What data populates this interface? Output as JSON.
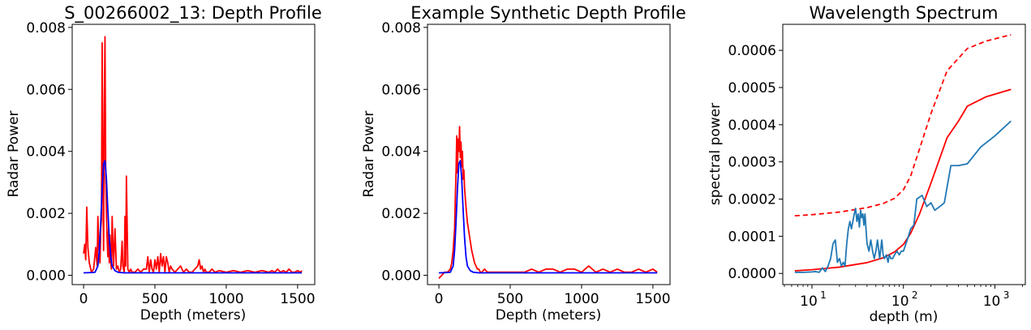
{
  "colors": {
    "red": "#ff0000",
    "blue": "#0000ff",
    "steelblue": "#1f77b4",
    "axes": "#000000",
    "background": "#ffffff"
  },
  "chart_data": [
    {
      "type": "line",
      "title": "S_00266002_13: Depth Profile",
      "xlabel": "Depth (meters)",
      "ylabel": "Radar Power",
      "xlim": [
        -80,
        1620
      ],
      "ylim": [
        -0.0003,
        0.0081
      ],
      "xticks": [
        0,
        500,
        1000,
        1500
      ],
      "xtick_labels": [
        "0",
        "500",
        "1000",
        "1500"
      ],
      "yticks": [
        0.0,
        0.002,
        0.004,
        0.006,
        0.008
      ],
      "ytick_labels": [
        "0.000",
        "0.002",
        "0.004",
        "0.006",
        "0.008"
      ],
      "grid": false,
      "series": [
        {
          "color": "red",
          "style": "solid",
          "x": [
            0,
            8,
            15,
            22,
            30,
            40,
            55,
            70,
            85,
            95,
            100,
            108,
            115,
            120,
            125,
            130,
            135,
            140,
            145,
            150,
            155,
            160,
            165,
            170,
            175,
            180,
            185,
            190,
            195,
            200,
            210,
            220,
            230,
            240,
            250,
            260,
            270,
            275,
            280,
            285,
            290,
            295,
            300,
            310,
            320,
            330,
            340,
            360,
            380,
            400,
            420,
            440,
            450,
            460,
            470,
            480,
            490,
            500,
            510,
            520,
            530,
            540,
            550,
            560,
            570,
            580,
            590,
            600,
            610,
            620,
            640,
            660,
            680,
            700,
            720,
            740,
            760,
            780,
            800,
            810,
            820,
            830,
            840,
            850,
            860,
            880,
            900,
            920,
            950,
            1000,
            1050,
            1100,
            1150,
            1200,
            1250,
            1300,
            1320,
            1340,
            1360,
            1380,
            1400,
            1420,
            1440,
            1460,
            1480,
            1500,
            1520,
            1530
          ],
          "y": [
            0.0007,
            0.001,
            0.0005,
            0.0022,
            0.0009,
            0.0004,
            0.0001,
            0.0002,
            0.0009,
            0.0003,
            0.0019,
            0.0008,
            0.0004,
            0.0015,
            0.0018,
            0.0075,
            0.0031,
            0.0008,
            0.0055,
            0.0077,
            0.0032,
            0.002,
            0.0012,
            0.0006,
            0.0015,
            0.0004,
            0.0013,
            0.0005,
            0.0002,
            0.0019,
            0.0003,
            0.0015,
            0.0002,
            0.0003,
            0.0001,
            0.0002,
            0.0011,
            0.0003,
            0.0002,
            0.0001,
            0.0019,
            0.0003,
            0.0032,
            0.0002,
            0.0001,
            0.0002,
            0.0001,
            0.0001,
            0.0002,
            0.0001,
            0.0002,
            0.0002,
            0.0006,
            0.0001,
            0.0005,
            0.0002,
            0.0001,
            0.0005,
            0.0002,
            0.0006,
            0.0001,
            0.0007,
            0.0003,
            0.0006,
            0.0001,
            0.0006,
            0.0004,
            0.0001,
            0.0003,
            0.0002,
            0.0001,
            0.0002,
            0.0003,
            0.0001,
            0.0002,
            0.0001,
            0.0001,
            0.0002,
            0.0003,
            0.0005,
            0.0002,
            0.0003,
            0.0001,
            0.0002,
            0.0001,
            0.0001,
            0.0002,
            0.0001,
            0.00015,
            0.0001,
            0.00015,
            0.0001,
            0.00015,
            0.0001,
            0.00015,
            0.0001,
            0.00015,
            0.0001,
            0.0002,
            0.0001,
            0.00015,
            0.0001,
            0.0002,
            0.0001,
            0.0001,
            0.00015,
            0.0001,
            0.00015
          ]
        },
        {
          "color": "blue",
          "style": "solid",
          "x": [
            0,
            60,
            80,
            100,
            110,
            120,
            130,
            140,
            150,
            160,
            170,
            180,
            190,
            200,
            220,
            240,
            280,
            400,
            800,
            1200,
            1530
          ],
          "y": [
            8e-05,
            9e-05,
            0.0001,
            0.0003,
            0.0008,
            0.0017,
            0.0028,
            0.0036,
            0.0037,
            0.0031,
            0.0021,
            0.0012,
            0.0006,
            0.0003,
            0.00015,
            0.0001,
            8e-05,
            8e-05,
            8e-05,
            8e-05,
            8e-05
          ]
        }
      ]
    },
    {
      "type": "line",
      "title": "Example Synthetic Depth Profile",
      "xlabel": "Depth (meters)",
      "ylabel": "Radar Power",
      "xlim": [
        -80,
        1620
      ],
      "ylim": [
        -0.0003,
        0.0081
      ],
      "xticks": [
        0,
        500,
        1000,
        1500
      ],
      "xtick_labels": [
        "0",
        "500",
        "1000",
        "1500"
      ],
      "yticks": [
        0.0,
        0.002,
        0.004,
        0.006,
        0.008
      ],
      "ytick_labels": [
        "0.000",
        "0.002",
        "0.004",
        "0.006",
        "0.008"
      ],
      "grid": false,
      "series": [
        {
          "color": "red",
          "style": "solid",
          "x": [
            0,
            20,
            40,
            60,
            80,
            90,
            100,
            110,
            115,
            120,
            125,
            130,
            135,
            140,
            145,
            150,
            155,
            160,
            165,
            170,
            175,
            180,
            185,
            190,
            200,
            210,
            220,
            230,
            240,
            250,
            260,
            270,
            280,
            290,
            300,
            320,
            340,
            360,
            400,
            450,
            500,
            550,
            600,
            650,
            700,
            750,
            800,
            850,
            900,
            950,
            1000,
            1050,
            1100,
            1150,
            1200,
            1250,
            1300,
            1350,
            1400,
            1450,
            1500,
            1530
          ],
          "y": [
            -0.0001,
            0.0,
            0.0001,
            0.0001,
            0.0002,
            0.0004,
            0.0008,
            0.0015,
            0.0025,
            0.0033,
            0.0045,
            0.0033,
            0.0044,
            0.004,
            0.0048,
            0.0038,
            0.0043,
            0.0035,
            0.004,
            0.0031,
            0.0034,
            0.0028,
            0.0025,
            0.0022,
            0.0017,
            0.0014,
            0.0011,
            0.0008,
            0.0006,
            0.0004,
            0.0003,
            0.0002,
            0.0002,
            0.0001,
            0.0001,
            0.0002,
            0.0001,
            0.0001,
            0.0001,
            0.0001,
            0.0001,
            0.0001,
            0.0001,
            0.0002,
            0.0001,
            0.0002,
            0.0002,
            0.0001,
            0.0002,
            0.0002,
            0.0001,
            0.0003,
            0.0001,
            0.0002,
            0.0001,
            0.0002,
            0.0001,
            0.0001,
            0.0002,
            0.0001,
            0.0002,
            0.0001
          ]
        },
        {
          "color": "blue",
          "style": "solid",
          "x": [
            0,
            60,
            80,
            100,
            110,
            120,
            130,
            140,
            150,
            160,
            170,
            180,
            190,
            200,
            220,
            240,
            280,
            400,
            800,
            1200,
            1530
          ],
          "y": [
            8e-05,
            9e-05,
            0.0001,
            0.0003,
            0.0008,
            0.0017,
            0.0028,
            0.0036,
            0.0037,
            0.0031,
            0.0021,
            0.0012,
            0.0006,
            0.0003,
            0.00015,
            0.0001,
            8e-05,
            8e-05,
            8e-05,
            8e-05,
            8e-05
          ]
        }
      ]
    },
    {
      "type": "line",
      "title": "Wavelength Spectrum",
      "xlabel": "depth (m)",
      "ylabel": "spectral power",
      "xscale": "log",
      "xlim": [
        4.8,
        2150
      ],
      "ylim": [
        -3e-05,
        0.00067
      ],
      "xticks": [
        10,
        100,
        1000
      ],
      "xtick_labels": [
        {
          "base": "10",
          "exp": "1"
        },
        {
          "base": "10",
          "exp": "2"
        },
        {
          "base": "10",
          "exp": "3"
        }
      ],
      "yticks": [
        0.0,
        0.0001,
        0.0002,
        0.0003,
        0.0004,
        0.0005,
        0.0006
      ],
      "ytick_labels": [
        "0.0000",
        "0.0001",
        "0.0002",
        "0.0003",
        "0.0004",
        "0.0005",
        "0.0006"
      ],
      "grid": false,
      "series": [
        {
          "color": "red",
          "style": "dashed",
          "x": [
            6.5,
            10,
            20,
            40,
            60,
            80,
            100,
            120,
            150,
            200,
            300,
            500,
            800,
            1500
          ],
          "y": [
            0.000155,
            0.000158,
            0.000165,
            0.000177,
            0.000188,
            0.000202,
            0.000225,
            0.000262,
            0.000335,
            0.00043,
            0.000545,
            0.000605,
            0.000625,
            0.000642
          ]
        },
        {
          "color": "red",
          "style": "solid",
          "x": [
            6.5,
            10,
            20,
            40,
            60,
            80,
            100,
            120,
            150,
            200,
            300,
            400,
            500,
            800,
            1500
          ],
          "y": [
            7e-06,
            1e-05,
            1.7e-05,
            2.9e-05,
            4.2e-05,
            5.8e-05,
            7.8e-05,
            0.000108,
            0.00016,
            0.000243,
            0.000365,
            0.00041,
            0.00045,
            0.000475,
            0.000495
          ]
        },
        {
          "color": "steelblue",
          "style": "solid",
          "x": [
            6.5,
            8,
            10,
            11,
            12,
            13,
            14,
            15,
            16,
            17,
            18,
            19,
            20,
            21,
            22,
            23,
            24,
            25,
            26,
            27,
            28,
            29,
            30,
            31,
            32,
            33,
            34,
            35,
            36,
            37,
            38,
            40,
            42,
            44,
            46,
            48,
            50,
            52,
            55,
            58,
            60,
            62,
            65,
            68,
            70,
            73,
            76,
            80,
            85,
            90,
            95,
            100,
            110,
            120,
            130,
            140,
            160,
            180,
            200,
            220,
            250,
            280,
            330,
            400,
            500,
            700,
            1000,
            1500
          ],
          "y": [
            3e-06,
            3e-06,
            4e-06,
            5e-06,
            3e-06,
            1.5e-05,
            5e-06,
            2e-05,
            4e-05,
            8e-05,
            9e-05,
            3e-05,
            4e-05,
            2e-05,
            3e-05,
            2e-05,
            8e-05,
            0.00012,
            0.00014,
            0.00012,
            0.00014,
            0.00016,
            0.000175,
            0.00014,
            0.00016,
            0.000125,
            0.00017,
            0.00015,
            0.00016,
            0.00013,
            0.00016,
            8e-05,
            6e-05,
            9e-05,
            6e-05,
            4e-05,
            6e-05,
            9e-05,
            4e-05,
            9e-05,
            5e-05,
            4e-05,
            5e-05,
            3e-05,
            5e-05,
            4e-05,
            4e-05,
            5e-05,
            6e-05,
            5e-05,
            6e-05,
            6e-05,
            9e-05,
            0.00012,
            0.00013,
            0.0002,
            0.00021,
            0.00018,
            0.00019,
            0.00017,
            0.00018,
            0.00019,
            0.00029,
            0.00029,
            0.000295,
            0.00034,
            0.00037,
            0.00041
          ]
        }
      ]
    }
  ]
}
